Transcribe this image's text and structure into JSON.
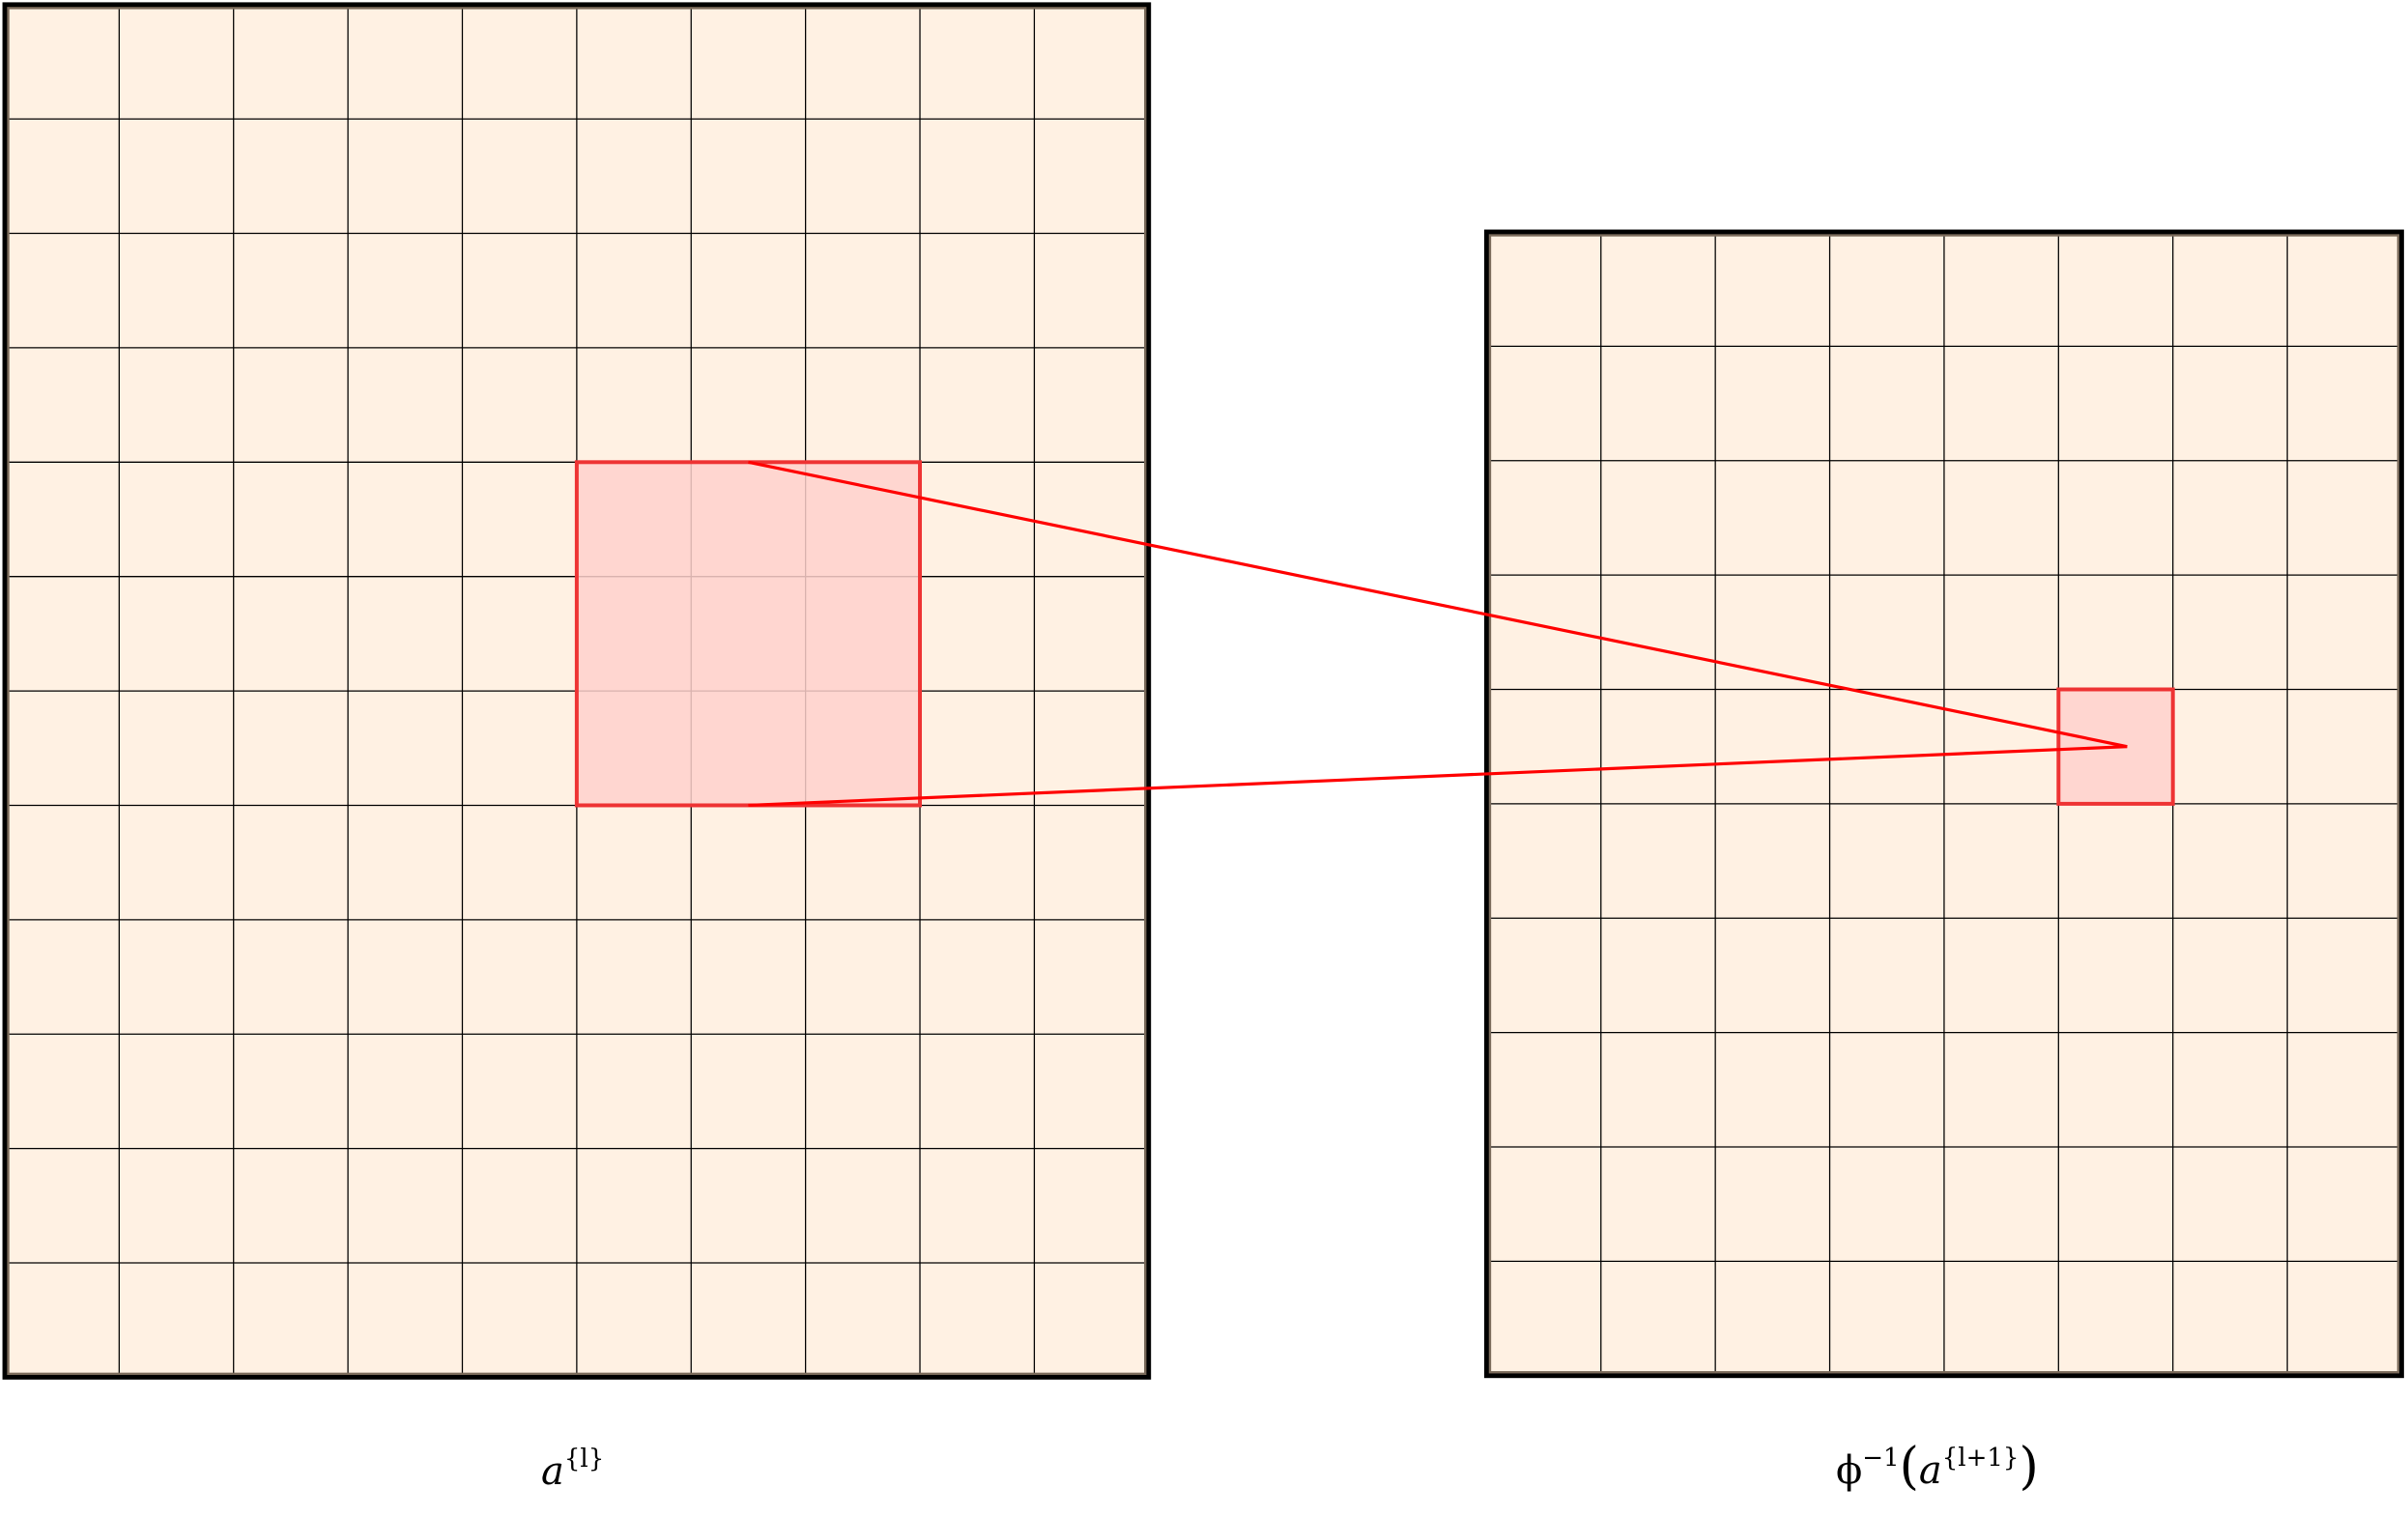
{
  "colors": {
    "cell_fill": "#fff1e3",
    "grid_line": "#000000",
    "border": "#000000",
    "border_inner": "#7a6a5a",
    "highlight_fill": "#ffd1cc",
    "highlight_stroke": "#ee3333",
    "projection_line": "#ff0000"
  },
  "left_grid": {
    "columns": 10,
    "rows": 12,
    "highlight": {
      "col_start": 5,
      "col_end": 7,
      "row_start": 4,
      "row_end": 6
    },
    "label": {
      "base": "a",
      "sup": "{l}"
    }
  },
  "right_grid": {
    "columns": 8,
    "rows": 10,
    "highlight": {
      "col_start": 5,
      "col_end": 5,
      "row_start": 4,
      "row_end": 4
    },
    "label": {
      "func": "ϕ",
      "func_sup": "−1",
      "open": "(",
      "base": "a",
      "sup": "{l+1}",
      "close": ")"
    }
  }
}
